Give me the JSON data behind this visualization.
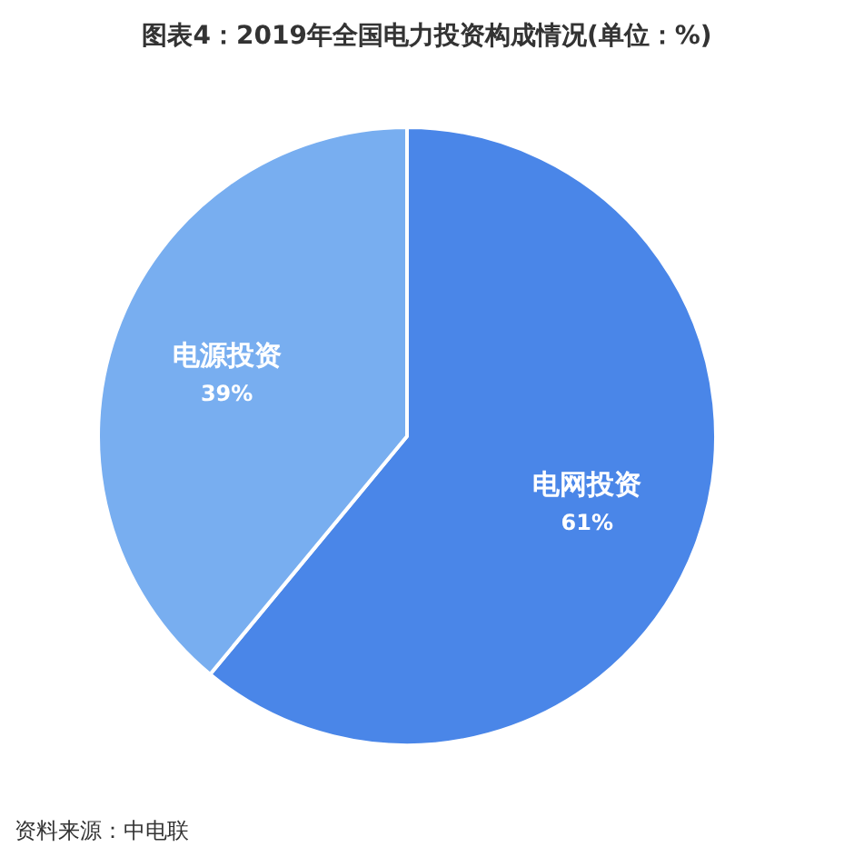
{
  "chart_data": {
    "type": "pie",
    "title": "图表4：2019年全国电力投资构成情况(单位：%)",
    "categories": [
      "电网投资",
      "电源投资"
    ],
    "values": [
      61,
      39
    ],
    "colors": [
      "#4a86e8",
      "#78aef0"
    ],
    "value_labels": [
      "61%",
      "39%"
    ],
    "legend": false,
    "annotations": [
      "资料来源：中电联"
    ]
  }
}
